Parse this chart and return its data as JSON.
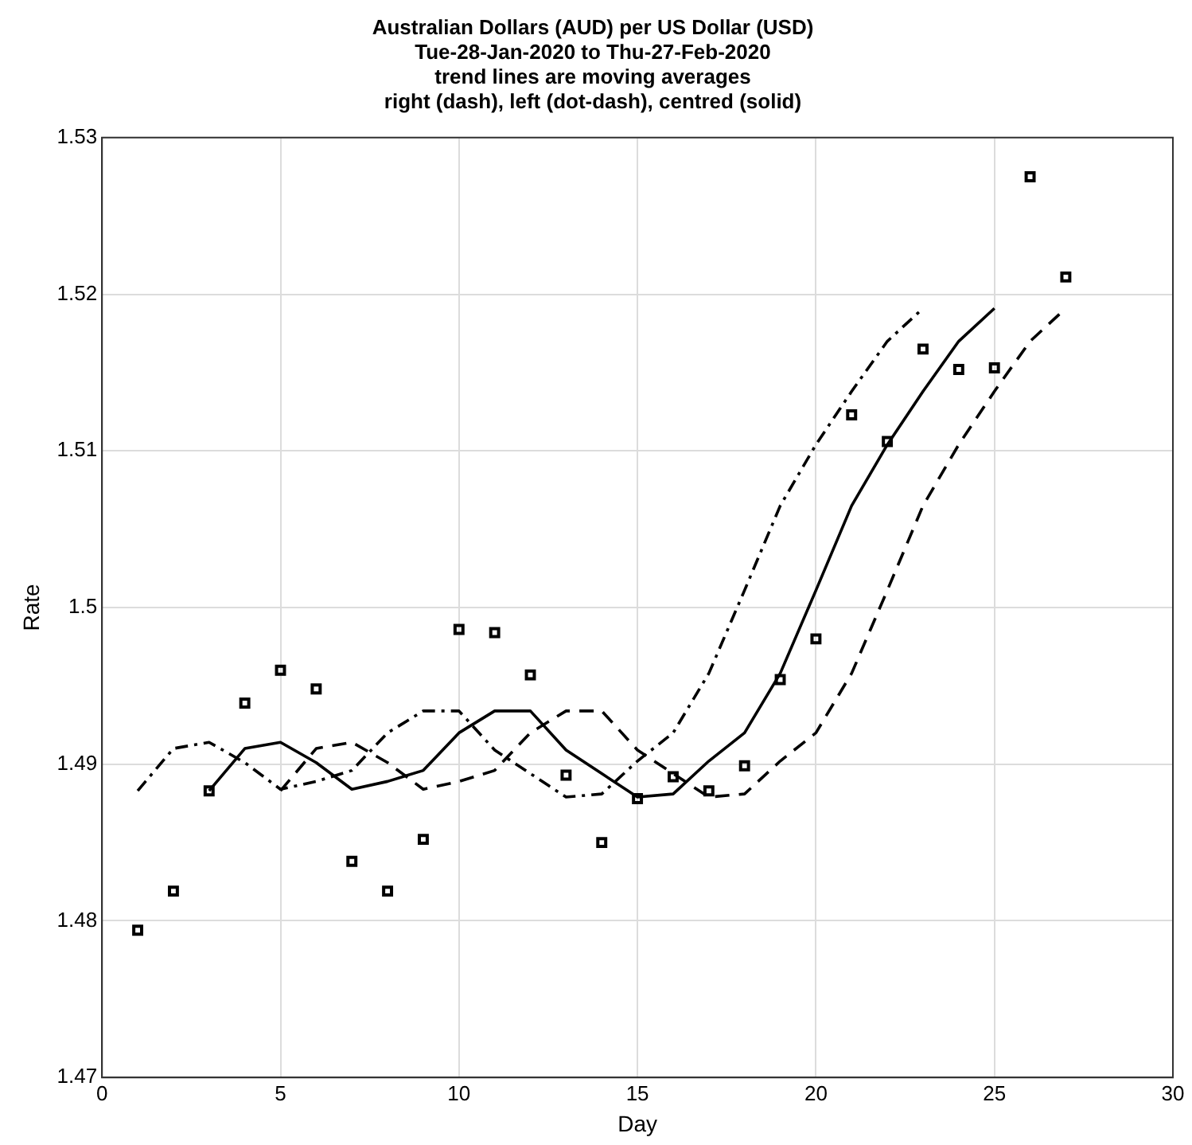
{
  "chart_data": {
    "type": "scatter",
    "title": "Australian Dollars (AUD) per US Dollar (USD)",
    "subtitle": "Tue-28-Jan-2020 to Thu-27-Feb-2020\ntrend lines are moving averages\nright (dash), left (dot-dash), centred (solid)",
    "xlabel": "Day",
    "ylabel": "Rate",
    "xlim": [
      0,
      30
    ],
    "xticks": [
      0,
      5,
      10,
      15,
      20,
      25,
      30
    ],
    "ylim": [
      1.47,
      1.53
    ],
    "yticks": [
      1.47,
      1.48,
      1.49,
      1.5,
      1.51,
      1.52,
      1.53
    ],
    "grid": true,
    "legend": false,
    "series": [
      {
        "type": "scatter",
        "color": "#000000",
        "marker": "square",
        "x": [
          1,
          2,
          3,
          4,
          5,
          6,
          7,
          8,
          9,
          10,
          11,
          12,
          13,
          14,
          15,
          16,
          17,
          18,
          19,
          20,
          21,
          22,
          23,
          24,
          25,
          26,
          27
        ],
        "values": [
          1.4794,
          1.4819,
          1.4883,
          1.4939,
          1.496,
          1.4948,
          1.4838,
          1.4819,
          1.4852,
          1.4986,
          1.4984,
          1.4957,
          1.4893,
          1.485,
          1.4878,
          1.4892,
          1.4883,
          1.4899,
          1.4954,
          1.498,
          1.5123,
          1.5106,
          1.5165,
          1.5152,
          1.5153,
          1.5275,
          1.5211
        ]
      },
      {
        "type": "line",
        "color": "#000000",
        "marker": "none",
        "line_style": "dashed",
        "x": [
          5,
          6,
          7,
          8,
          9,
          10,
          11,
          12,
          13,
          14,
          15,
          16,
          17,
          18,
          19,
          20,
          21,
          22,
          23,
          24,
          25,
          26,
          27
        ],
        "values": [
          1.4883,
          1.491,
          1.4914,
          1.4901,
          1.4884,
          1.4889,
          1.4896,
          1.492,
          1.4934,
          1.4934,
          1.4909,
          1.4894,
          1.4879,
          1.4881,
          1.4902,
          1.492,
          1.4958,
          1.5011,
          1.5065,
          1.5104,
          1.5138,
          1.517,
          1.5191
        ]
      },
      {
        "type": "line",
        "color": "#000000",
        "marker": "none",
        "line_style": "dashdot",
        "x": [
          1,
          2,
          3,
          4,
          5,
          6,
          7,
          8,
          9,
          10,
          11,
          12,
          13,
          14,
          15,
          16,
          17,
          18,
          19,
          20,
          21,
          22,
          23
        ],
        "values": [
          1.4883,
          1.491,
          1.4914,
          1.4901,
          1.4884,
          1.4889,
          1.4896,
          1.492,
          1.4934,
          1.4934,
          1.4909,
          1.4894,
          1.4879,
          1.4881,
          1.4902,
          1.492,
          1.4958,
          1.5011,
          1.5065,
          1.5104,
          1.5138,
          1.517,
          1.5191
        ]
      },
      {
        "type": "line",
        "color": "#000000",
        "marker": "none",
        "line_style": "solid",
        "x": [
          3,
          4,
          5,
          6,
          7,
          8,
          9,
          10,
          11,
          12,
          13,
          14,
          15,
          16,
          17,
          18,
          19,
          20,
          21,
          22,
          23,
          24,
          25
        ],
        "values": [
          1.4883,
          1.491,
          1.4914,
          1.4901,
          1.4884,
          1.4889,
          1.4896,
          1.492,
          1.4934,
          1.4934,
          1.4909,
          1.4894,
          1.4879,
          1.4881,
          1.4902,
          1.492,
          1.4958,
          1.5011,
          1.5065,
          1.5104,
          1.5138,
          1.517,
          1.5191
        ]
      }
    ]
  }
}
